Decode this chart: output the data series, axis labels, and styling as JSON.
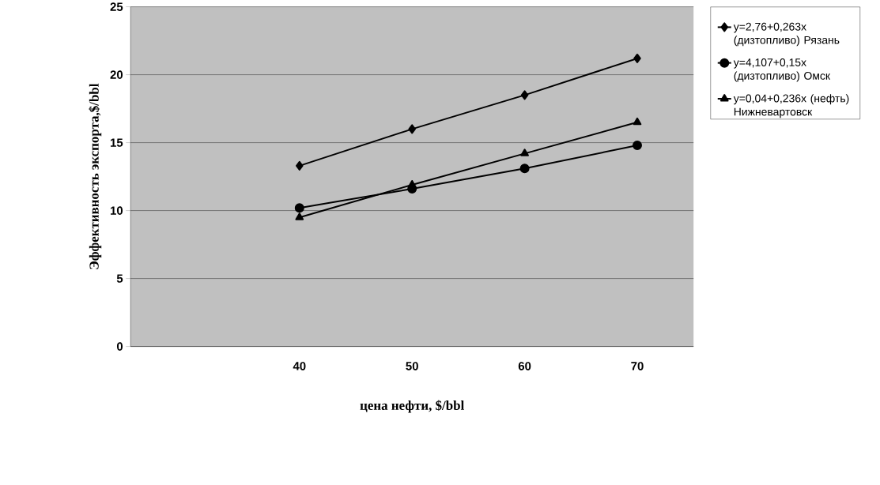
{
  "chart_data": {
    "type": "line",
    "xlabel": "цена нефти, $/bbl",
    "ylabel": "Эффективность экспорта,$/bbl",
    "categories": [
      null,
      "40",
      "50",
      "60",
      "70"
    ],
    "series": [
      {
        "name": "y=2,76+0,263x (дизтопливо) Рязань",
        "color": "#000000",
        "marker": "diamond",
        "values": [
          null,
          13.3,
          16.0,
          18.5,
          21.2
        ]
      },
      {
        "name": "y=4,107+0,15x (дизтопливо) Омск",
        "color": "#000000",
        "marker": "circle",
        "values": [
          null,
          10.2,
          11.6,
          13.1,
          14.8
        ]
      },
      {
        "name": "y=0,04+0,236x (нефть) Нижневартовск",
        "color": "#000000",
        "marker": "triangle",
        "values": [
          null,
          9.5,
          11.9,
          14.2,
          16.5
        ]
      }
    ],
    "ylim": [
      0,
      25
    ],
    "yticks": [
      0,
      5,
      10,
      15,
      20,
      25
    ],
    "grid": "y",
    "legend": "right",
    "line_style": "solid"
  }
}
